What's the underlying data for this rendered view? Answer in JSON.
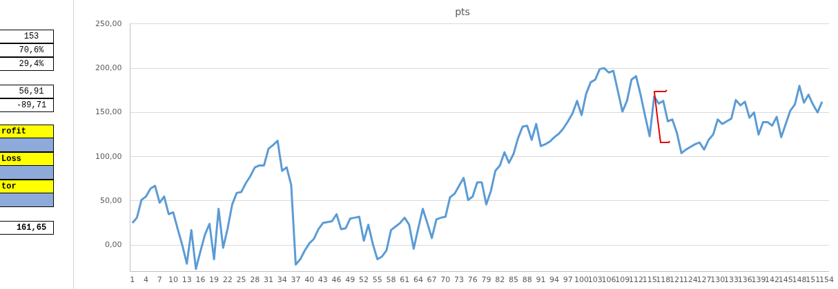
{
  "chart_data": [
    {
      "type": "other",
      "annotations": [
        "153",
        "70,6%",
        "29,4%",
        "56,91",
        "-89,71",
        "rofit",
        "Loss",
        "tor",
        "161,65"
      ]
    },
    {
      "type": "line",
      "title": "pts",
      "color": "#5b9bd5",
      "marker": "none",
      "line_style": "solid",
      "grid": "y",
      "legend": false,
      "categories": [
        "1",
        null,
        null,
        "4",
        null,
        null,
        "7",
        null,
        null,
        "10",
        null,
        null,
        "13",
        null,
        null,
        "16",
        null,
        null,
        "19",
        null,
        null,
        "22",
        null,
        null,
        "25",
        null,
        null,
        "28",
        null,
        null,
        "31",
        null,
        null,
        "34",
        null,
        null,
        "37",
        null,
        null,
        "40",
        null,
        null,
        "43",
        null,
        null,
        "46",
        null,
        null,
        "49",
        null,
        null,
        "52",
        null,
        null,
        "55",
        null,
        null,
        "58",
        null,
        null,
        "61",
        null,
        null,
        "64",
        null,
        null,
        "67",
        null,
        null,
        "70",
        null,
        null,
        "73",
        null,
        null,
        "76",
        null,
        null,
        "79",
        null,
        null,
        "82",
        null,
        null,
        "85",
        null,
        null,
        "88",
        null,
        null,
        "91",
        null,
        null,
        "94",
        null,
        null,
        "97",
        null,
        null,
        "100",
        null,
        null,
        "103",
        null,
        null,
        "106",
        null,
        null,
        "109",
        null,
        null,
        "112",
        null,
        null,
        "115",
        null,
        null,
        "118",
        null,
        null,
        "121",
        null,
        null,
        "124",
        null,
        null,
        "127",
        null,
        null,
        "130",
        null,
        null,
        "133",
        null,
        null,
        "136",
        null,
        null,
        "139",
        null,
        null,
        "142",
        null,
        null,
        "145",
        null,
        null,
        "148",
        null,
        null,
        "151",
        null,
        null,
        "154"
      ],
      "values": [
        25,
        31,
        51,
        55,
        64,
        67,
        48,
        55,
        35,
        37,
        18,
        0,
        -21,
        17,
        -27,
        -7,
        12,
        24,
        -16,
        41,
        -3,
        19,
        46,
        59,
        60,
        70,
        78,
        88,
        90,
        90,
        109,
        113,
        118,
        84,
        88,
        68,
        -22,
        -16,
        -6,
        2,
        7,
        18,
        25,
        26,
        27,
        35,
        18,
        19,
        30,
        31,
        32,
        5,
        23,
        1,
        -16,
        -13,
        -6,
        17,
        21,
        25,
        31,
        23,
        -4,
        19,
        41,
        25,
        8,
        29,
        31,
        32,
        54,
        58,
        67,
        76,
        51,
        55,
        71,
        71,
        46,
        61,
        84,
        90,
        105,
        93,
        103,
        121,
        134,
        135,
        119,
        137,
        112,
        114,
        117,
        122,
        126,
        132,
        140,
        149,
        163,
        147,
        171,
        184,
        187,
        199,
        200,
        195,
        197,
        174,
        151,
        163,
        187,
        191,
        170,
        146,
        123,
        168,
        160,
        163,
        140,
        142,
        127,
        104,
        108,
        111,
        114,
        116,
        108,
        119,
        125,
        142,
        137,
        140,
        143,
        164,
        158,
        162,
        144,
        150,
        125,
        139,
        139,
        135,
        145,
        122,
        137,
        152,
        159,
        180,
        161,
        170,
        159,
        150,
        162,
        null
      ],
      "ylim": [
        -30,
        250
      ],
      "yticks": [
        {
          "value": 0,
          "label": "0,00"
        },
        {
          "value": 50,
          "label": "50,00"
        },
        {
          "value": 100,
          "label": "100,00"
        },
        {
          "value": 150,
          "label": "150,00"
        },
        {
          "value": 200,
          "label": "200,00"
        },
        {
          "value": 250,
          "label": "250,00"
        }
      ]
    }
  ]
}
